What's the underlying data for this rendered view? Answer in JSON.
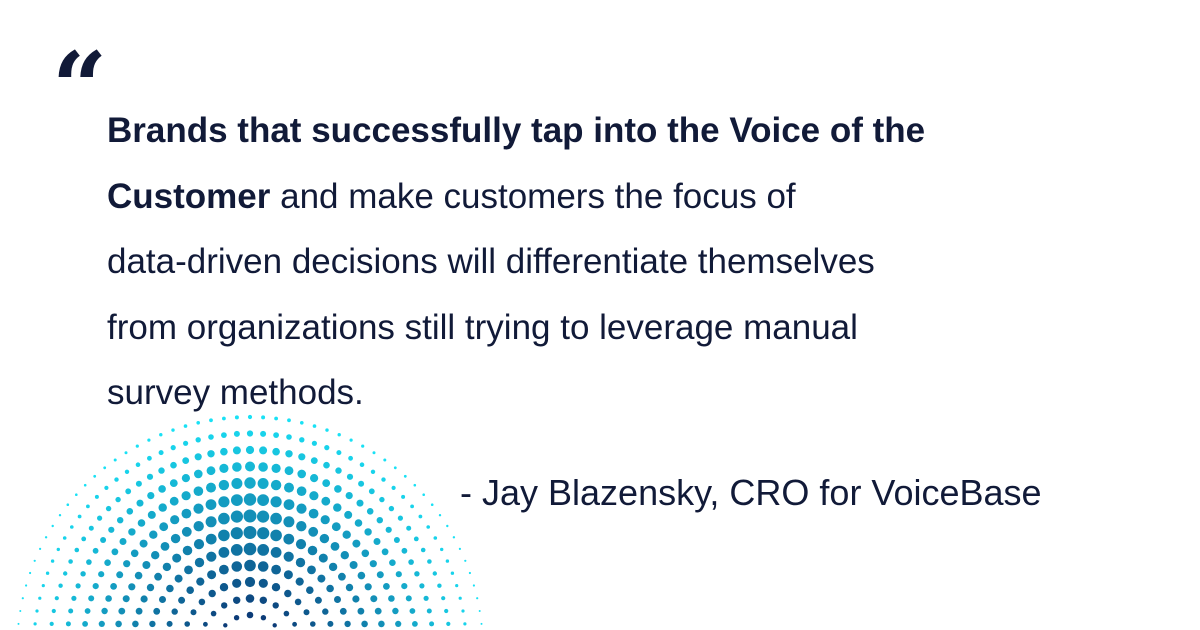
{
  "quote": {
    "lines": [
      [
        {
          "text": "Brands that successfully tap into the Voice of the",
          "bold": true
        }
      ],
      [
        {
          "text": "Customer",
          "bold": true
        },
        {
          "text": " and make customers the focus of",
          "bold": false
        }
      ],
      [
        {
          "text": "data-driven decisions will differentiate themselves",
          "bold": false
        }
      ],
      [
        {
          "text": "from organizations still trying to leverage manual",
          "bold": false
        }
      ],
      [
        {
          "text": "survey methods.",
          "bold": false
        }
      ]
    ]
  },
  "attribution": "- Jay Blazensky, CRO for VoiceBase"
}
